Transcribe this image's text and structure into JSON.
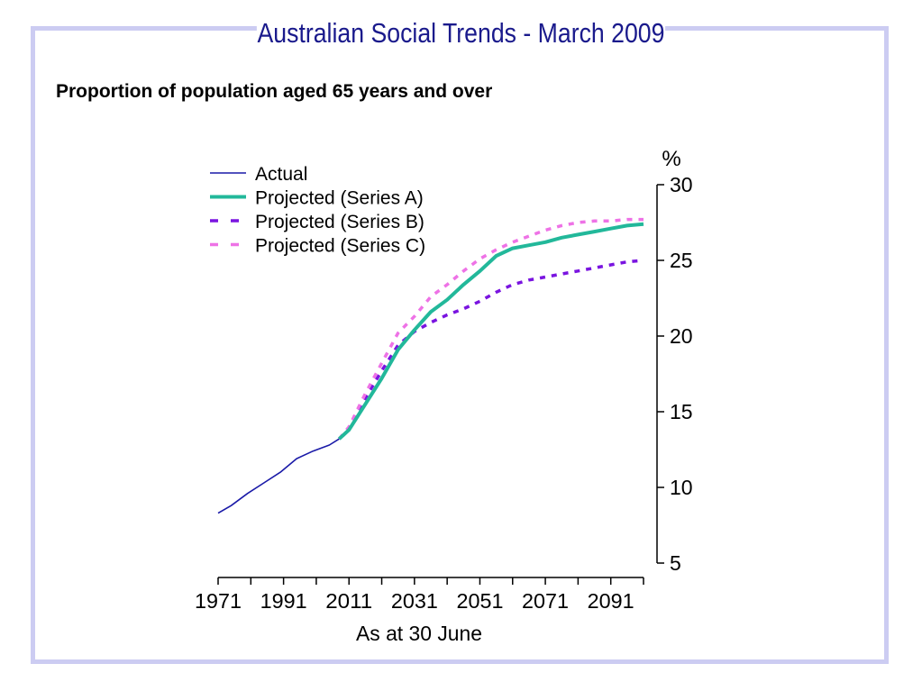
{
  "header": {
    "title": "Australian Social Trends - March 2009"
  },
  "chart_data": {
    "type": "line",
    "title": "Proportion of population aged 65 years and over",
    "xlabel": "As at 30 June",
    "ylabel": "%",
    "xlim": [
      1971,
      2101
    ],
    "ylim": [
      5,
      30
    ],
    "x_ticks": [
      1971,
      1991,
      2011,
      2031,
      2051,
      2071,
      2091
    ],
    "y_ticks": [
      5,
      10,
      15,
      20,
      25,
      30
    ],
    "y_axis_side": "right",
    "legend": {
      "placement": "top-left",
      "entries": [
        "Actual",
        "Projected (Series A)",
        "Projected (Series B)",
        "Projected (Series C)"
      ]
    },
    "series": [
      {
        "name": "Actual",
        "color": "#1a1aa8",
        "style": "solid-thin",
        "x": [
          1971,
          1975,
          1980,
          1985,
          1990,
          1995,
          2000,
          2005,
          2008
        ],
        "y": [
          8.3,
          8.8,
          9.6,
          10.3,
          11.0,
          11.9,
          12.4,
          12.8,
          13.2
        ]
      },
      {
        "name": "Projected (Series A)",
        "color": "#22b89a",
        "style": "solid-thick",
        "x": [
          2008,
          2011,
          2016,
          2021,
          2026,
          2031,
          2036,
          2041,
          2046,
          2051,
          2056,
          2061,
          2066,
          2071,
          2076,
          2081,
          2086,
          2091,
          2096,
          2101
        ],
        "y": [
          13.2,
          13.8,
          15.5,
          17.2,
          19.1,
          20.4,
          21.6,
          22.4,
          23.4,
          24.3,
          25.3,
          25.8,
          26.0,
          26.2,
          26.5,
          26.7,
          26.9,
          27.1,
          27.3,
          27.4
        ]
      },
      {
        "name": "Projected (Series B)",
        "color": "#7a14e0",
        "style": "dashed",
        "x": [
          2008,
          2011,
          2016,
          2021,
          2026,
          2031,
          2036,
          2041,
          2046,
          2051,
          2056,
          2061,
          2066,
          2071,
          2076,
          2081,
          2086,
          2091,
          2096,
          2101
        ],
        "y": [
          13.2,
          13.9,
          15.9,
          17.7,
          19.4,
          20.3,
          20.9,
          21.4,
          21.8,
          22.3,
          22.9,
          23.4,
          23.7,
          23.9,
          24.1,
          24.3,
          24.5,
          24.7,
          24.9,
          25.0
        ]
      },
      {
        "name": "Projected (Series C)",
        "color": "#ee72e6",
        "style": "dashed",
        "x": [
          2008,
          2011,
          2016,
          2021,
          2026,
          2031,
          2036,
          2041,
          2046,
          2051,
          2056,
          2061,
          2066,
          2071,
          2076,
          2081,
          2086,
          2091,
          2096,
          2101
        ],
        "y": [
          13.2,
          14.0,
          16.2,
          18.2,
          20.2,
          21.3,
          22.6,
          23.4,
          24.3,
          25.1,
          25.7,
          26.2,
          26.6,
          27.0,
          27.3,
          27.5,
          27.6,
          27.6,
          27.7,
          27.7
        ]
      }
    ]
  }
}
